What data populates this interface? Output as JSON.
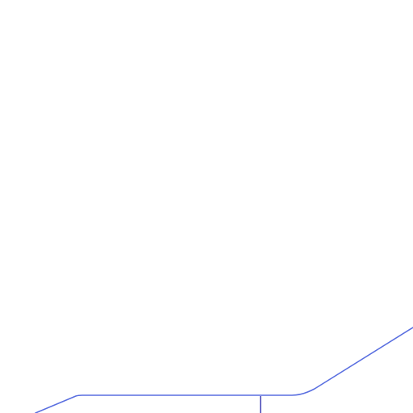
{
  "map": {
    "background_color": "#ffffff",
    "layers": [
      {
        "name": "main-route-line",
        "color": "#5a6fe0",
        "kind": "route"
      },
      {
        "name": "branch-route-line",
        "color": "#4a48b8",
        "kind": "route"
      }
    ]
  }
}
